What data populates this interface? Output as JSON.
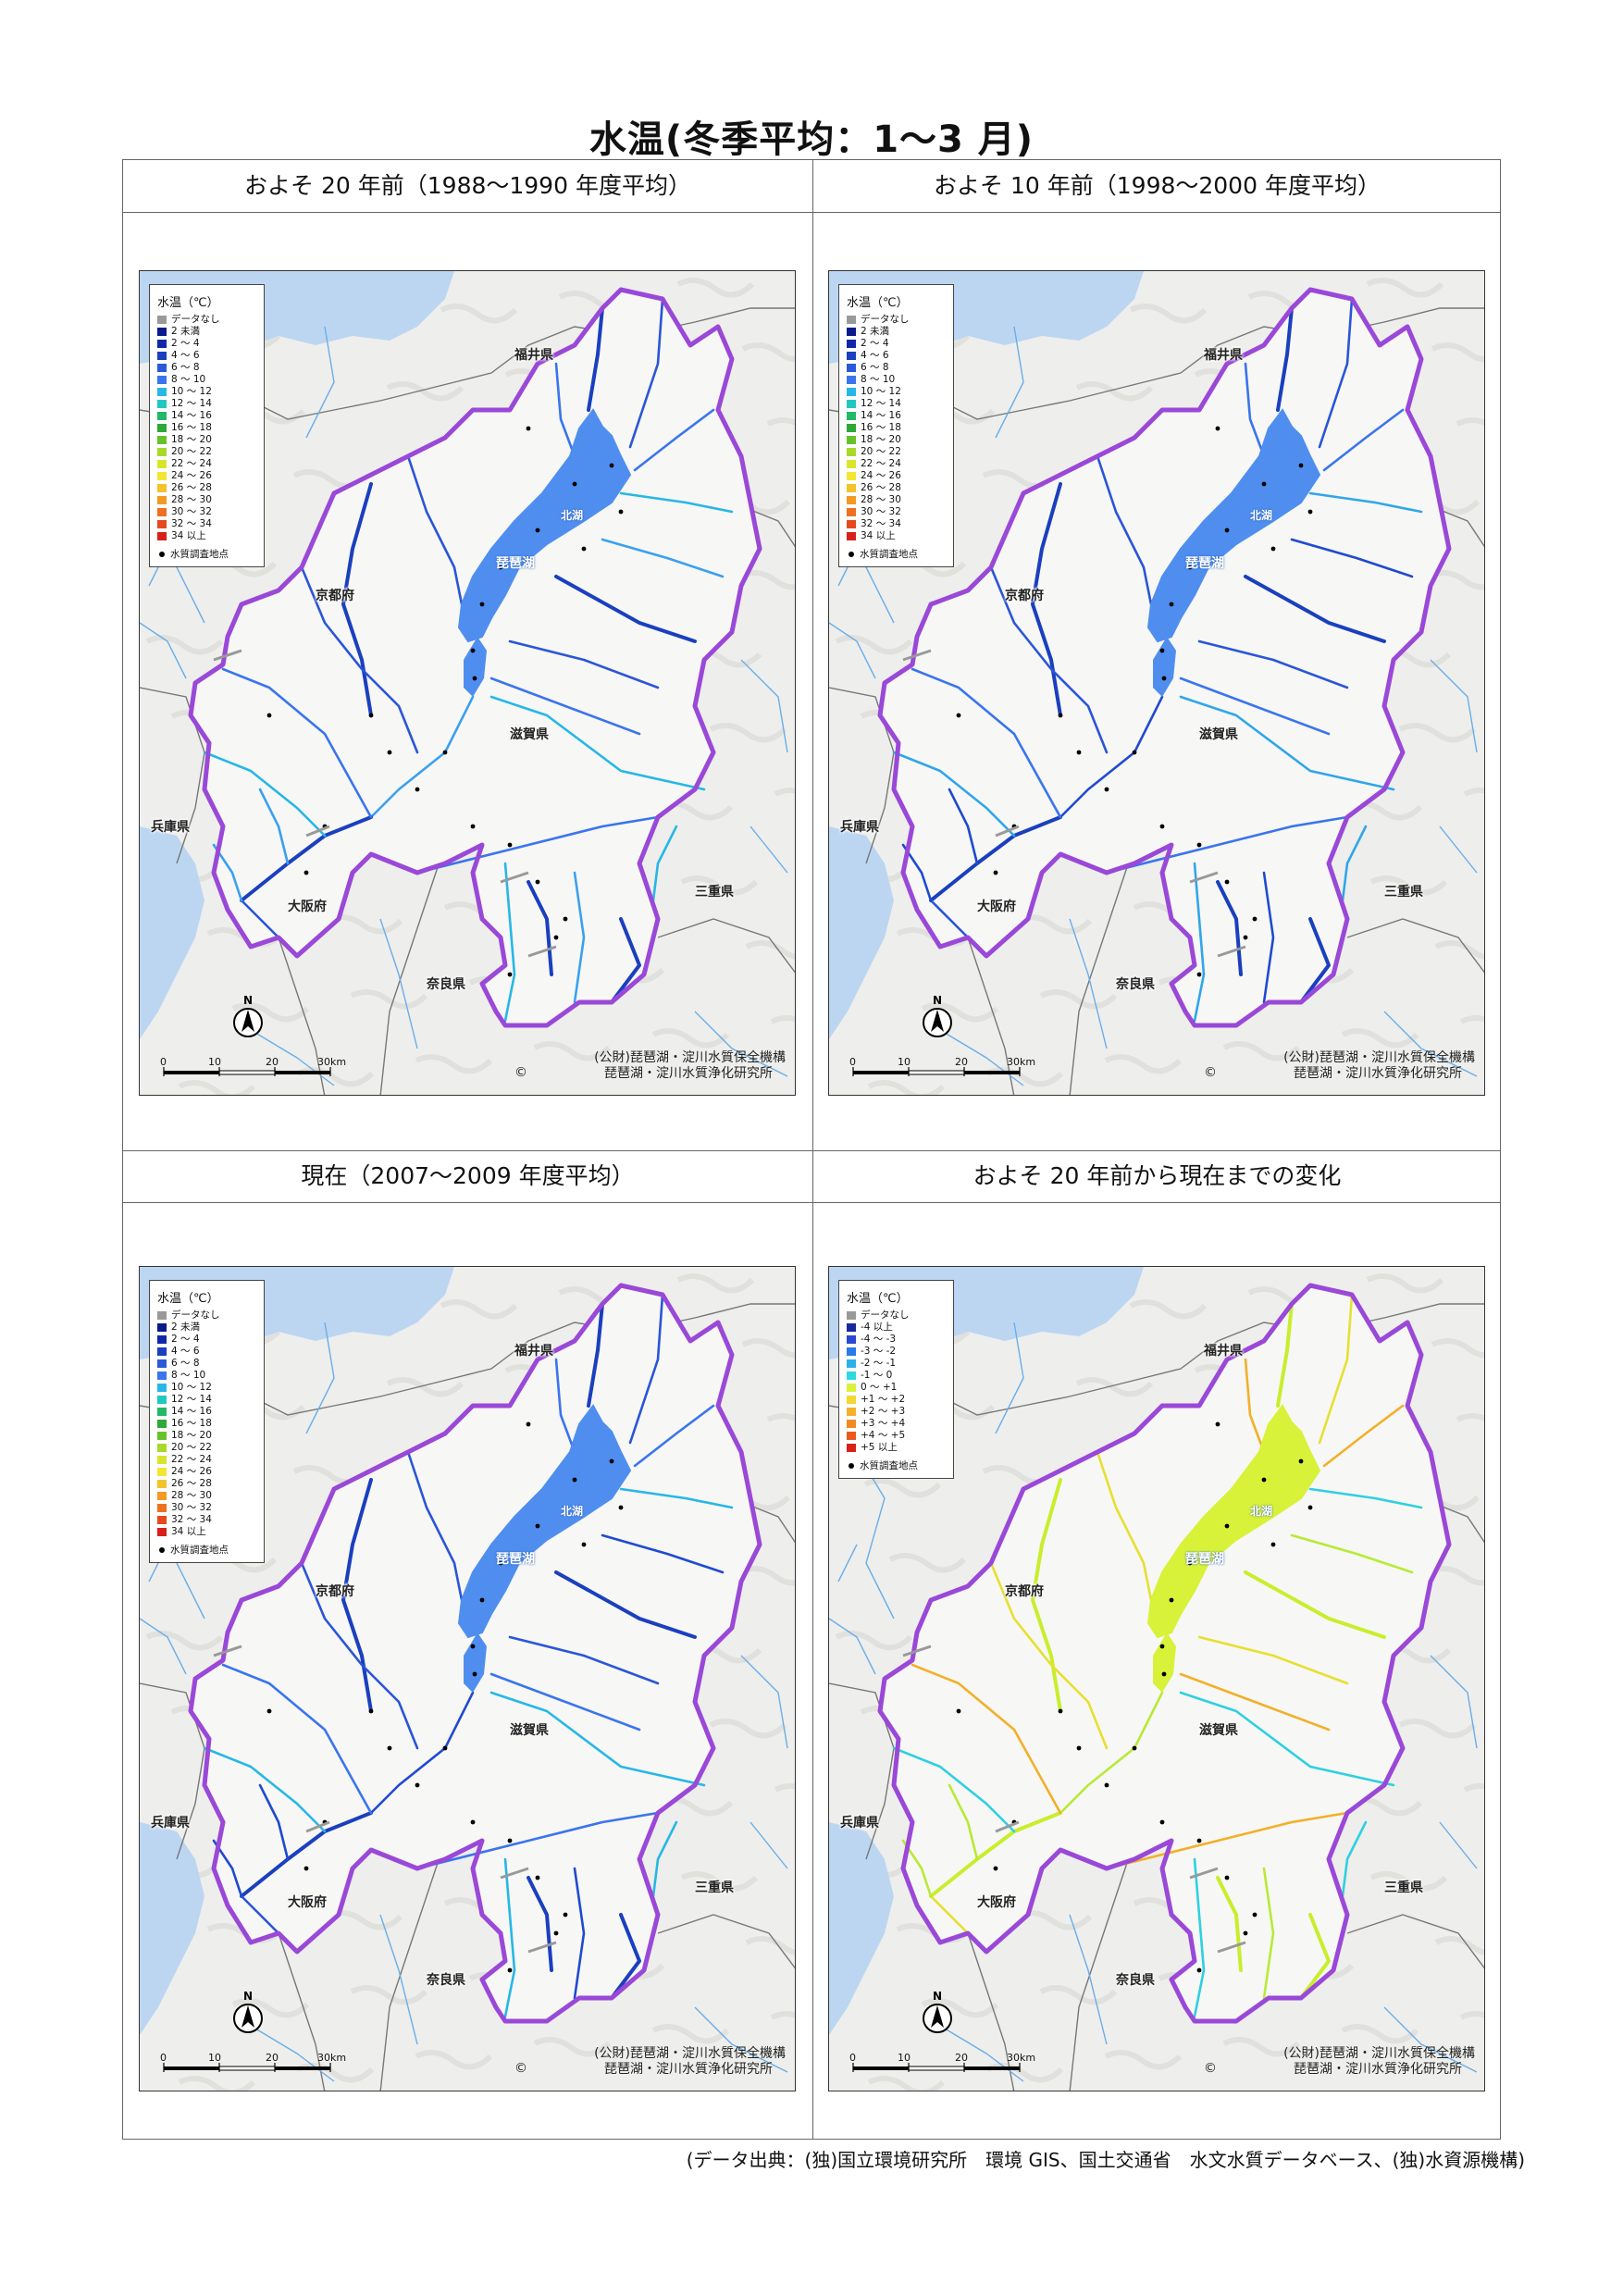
{
  "title": "水温(冬季平均：1〜3 月)",
  "panels": [
    {
      "heading": "およそ 20 年前（1988〜1990 年度平均）",
      "legend_type": "absolute",
      "lake_color": "#4f8eef",
      "river_palette": [
        "#1a3fbf",
        "#2a55d8",
        "#3a74ee",
        "#27b7e6",
        "#3aa0f0"
      ]
    },
    {
      "heading": "およそ 10 年前（1998〜2000 年度平均）",
      "legend_type": "absolute",
      "lake_color": "#4f8eef",
      "river_palette": [
        "#1a3fbf",
        "#2a55d8",
        "#3a74ee",
        "#2fa6ea",
        "#1f4ad0"
      ]
    },
    {
      "heading": "現在（2007〜2009 年度平均）",
      "legend_type": "absolute",
      "lake_color": "#4f8eef",
      "river_palette": [
        "#1a3fbf",
        "#2a55d8",
        "#3a74ee",
        "#27b7e6",
        "#1f4ad0"
      ]
    },
    {
      "heading": "およそ 20 年前から現在までの変化",
      "legend_type": "change",
      "lake_color": "#d8f23a",
      "river_palette": [
        "#c8ee2c",
        "#e6e030",
        "#f2b02a",
        "#2ed0e0",
        "#b8ea36"
      ]
    }
  ],
  "legends": {
    "absolute": {
      "title": "水温（℃）",
      "items": [
        {
          "label": "データなし",
          "color": "#999999"
        },
        {
          "label": "2 未満",
          "color": "#0a1a8c"
        },
        {
          "label": "2 〜 4",
          "color": "#1028a8"
        },
        {
          "label": "4 〜 6",
          "color": "#1a3fbf"
        },
        {
          "label": "6 〜 8",
          "color": "#2a5ad8"
        },
        {
          "label": "8 〜 10",
          "color": "#3a74ee"
        },
        {
          "label": "10 〜 12",
          "color": "#27b7e6"
        },
        {
          "label": "12 〜 14",
          "color": "#20c8c0"
        },
        {
          "label": "14 〜 16",
          "color": "#22b868"
        },
        {
          "label": "16 〜 18",
          "color": "#2ea836"
        },
        {
          "label": "18 〜 20",
          "color": "#66c22a"
        },
        {
          "label": "20 〜 22",
          "color": "#a8d82a"
        },
        {
          "label": "22 〜 24",
          "color": "#d8e62a"
        },
        {
          "label": "24 〜 26",
          "color": "#f2e630"
        },
        {
          "label": "26 〜 28",
          "color": "#f4c22a"
        },
        {
          "label": "28 〜 30",
          "color": "#f29a22"
        },
        {
          "label": "30 〜 32",
          "color": "#ee7020"
        },
        {
          "label": "32 〜 34",
          "color": "#e64a1c"
        },
        {
          "label": "34 以上",
          "color": "#d8201a"
        }
      ],
      "point_label": "水質調査地点"
    },
    "change": {
      "title": "水温（℃）",
      "items": [
        {
          "label": "データなし",
          "color": "#999999"
        },
        {
          "label": "-4 以上",
          "color": "#1a2a9c"
        },
        {
          "label": "-4 〜 -3",
          "color": "#2a48d0"
        },
        {
          "label": "-3 〜 -2",
          "color": "#2a7ae8"
        },
        {
          "label": "-2 〜 -1",
          "color": "#2ab0ea"
        },
        {
          "label": "-1 〜 0",
          "color": "#2ed8e0"
        },
        {
          "label": "0 〜 +1",
          "color": "#d8f23a"
        },
        {
          "label": "+1 〜 +2",
          "color": "#f2d830"
        },
        {
          "label": "+2 〜 +3",
          "color": "#f4b02a"
        },
        {
          "label": "+3 〜 +4",
          "color": "#f28a22"
        },
        {
          "label": "+4 〜 +5",
          "color": "#ea5a1e"
        },
        {
          "label": "+5 以上",
          "color": "#d8201a"
        }
      ],
      "point_label": "水質調査地点"
    }
  },
  "map_labels": {
    "prefectures": {
      "fukui": "福井県",
      "kyoto": "京都府",
      "shiga": "滋賀県",
      "hyogo": "兵庫県",
      "osaka": "大阪府",
      "mie": "三重県",
      "nara": "奈良県"
    },
    "lake": "琵琶湖",
    "north_basin": "北湖",
    "north_arrow": "N",
    "scale_ticks": [
      "0",
      "10",
      "20",
      "30km"
    ],
    "credit_line1": "(公財)琵琶湖・淀川水質保全機構",
    "credit_line2": "琵琶湖・淀川水質浄化研究所",
    "copyright_mark": "©"
  },
  "footer": {
    "source": "(データ出典：(独)国立環境研究所　環境 GIS、国土交通省　水文水質データベース、(独)水資源機構)"
  }
}
